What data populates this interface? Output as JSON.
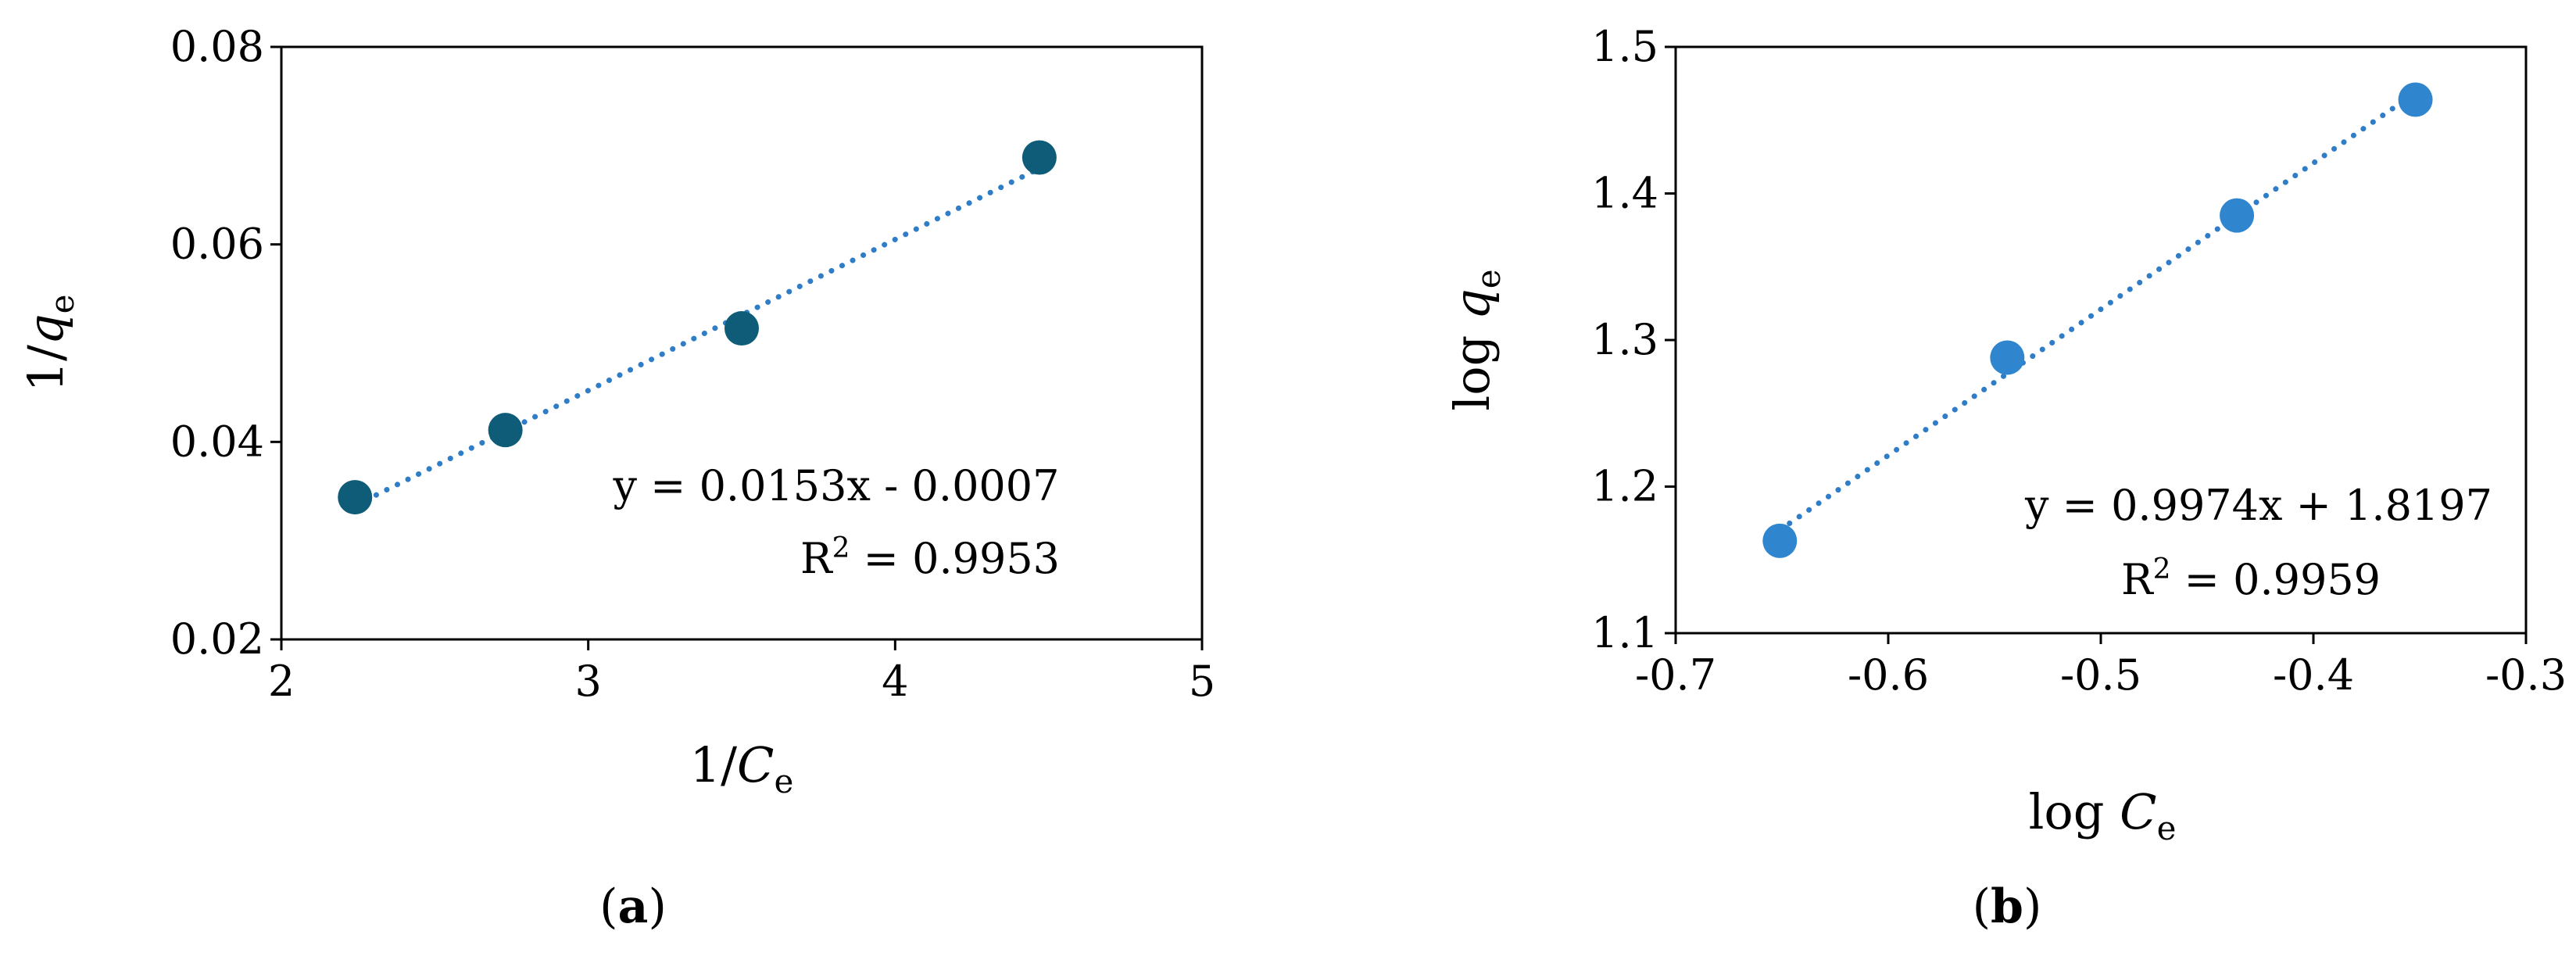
{
  "colors": {
    "panel_a_marker": "#0E5C78",
    "panel_b_marker": "#2F86CF",
    "trendline": "#2F7DC7"
  },
  "chart_data": [
    {
      "type": "scatter",
      "panel_label": {
        "open": "(",
        "letter": "a",
        "close": ")"
      },
      "xlabel": {
        "base": "1/",
        "var": "C",
        "sub": "e"
      },
      "ylabel": {
        "base": "1/",
        "var": "q",
        "sub": "e"
      },
      "xlim": [
        2,
        5
      ],
      "ylim": [
        0.02,
        0.08
      ],
      "x_ticks": [
        2,
        3,
        4,
        5
      ],
      "x_tick_labels": [
        "2",
        "3",
        "4",
        "5"
      ],
      "y_ticks": [
        0.02,
        0.04,
        0.06,
        0.08
      ],
      "y_tick_labels": [
        "0.02",
        "0.04",
        "0.06",
        "0.08"
      ],
      "grid": false,
      "points": {
        "x": [
          2.24,
          2.73,
          3.5,
          4.47
        ],
        "y": [
          0.0344,
          0.0412,
          0.0515,
          0.0688
        ]
      },
      "trendline": {
        "style": "dotted",
        "slope": 0.0153,
        "intercept": -0.0007
      },
      "equation": "y = 0.0153x - 0.0007",
      "r2": {
        "prefix": "R",
        "sup": "2",
        "suffix": " = 0.9953"
      }
    },
    {
      "type": "scatter",
      "panel_label": {
        "open": "(",
        "letter": "b",
        "close": ")"
      },
      "xlabel": {
        "base": "log ",
        "var": "C",
        "sub": "e"
      },
      "ylabel": {
        "base": "log ",
        "var": "q",
        "sub": "e"
      },
      "xlim": [
        -0.7,
        -0.3
      ],
      "ylim": [
        1.1,
        1.5
      ],
      "x_ticks": [
        -0.7,
        -0.6,
        -0.5,
        -0.4,
        -0.3
      ],
      "x_tick_labels": [
        "-0.7",
        "-0.6",
        "-0.5",
        "-0.4",
        "-0.3"
      ],
      "y_ticks": [
        1.1,
        1.2,
        1.3,
        1.4,
        1.5
      ],
      "y_tick_labels": [
        "1.1",
        "1.2",
        "1.3",
        "1.4",
        "1.5"
      ],
      "grid": false,
      "points": {
        "x": [
          -0.651,
          -0.544,
          -0.436,
          -0.352
        ],
        "y": [
          1.163,
          1.288,
          1.385,
          1.464
        ]
      },
      "trendline": {
        "style": "dotted",
        "slope": 0.9974,
        "intercept": 1.8197
      },
      "equation": "y = 0.9974x + 1.8197",
      "r2": {
        "prefix": "R",
        "sup": "2",
        "suffix": " = 0.9959"
      }
    }
  ]
}
